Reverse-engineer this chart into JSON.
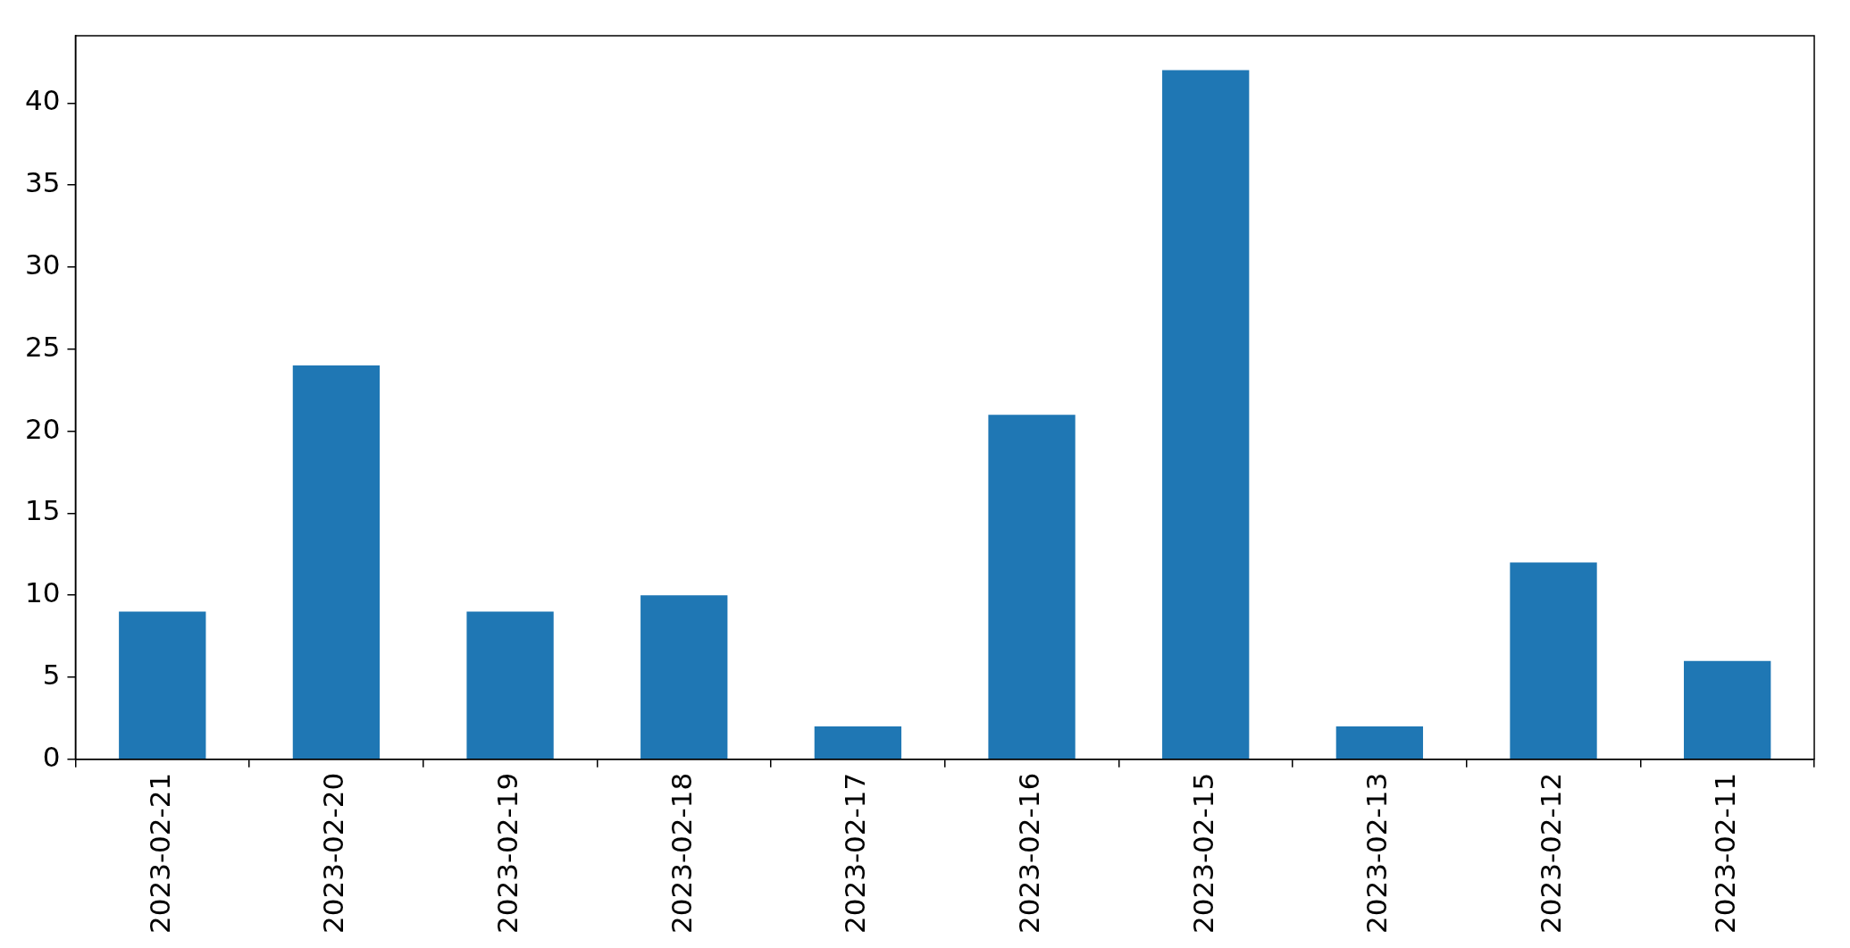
{
  "chart_data": {
    "type": "bar",
    "categories": [
      "2023-02-21",
      "2023-02-20",
      "2023-02-19",
      "2023-02-18",
      "2023-02-17",
      "2023-02-16",
      "2023-02-15",
      "2023-02-13",
      "2023-02-12",
      "2023-02-11"
    ],
    "values": [
      9,
      24,
      9,
      10,
      2,
      21,
      42,
      2,
      12,
      6
    ],
    "color": "#1f77b4",
    "ylim": [
      0,
      44.1
    ],
    "yticks": [
      0,
      5,
      10,
      15,
      20,
      25,
      30,
      35,
      40
    ]
  }
}
